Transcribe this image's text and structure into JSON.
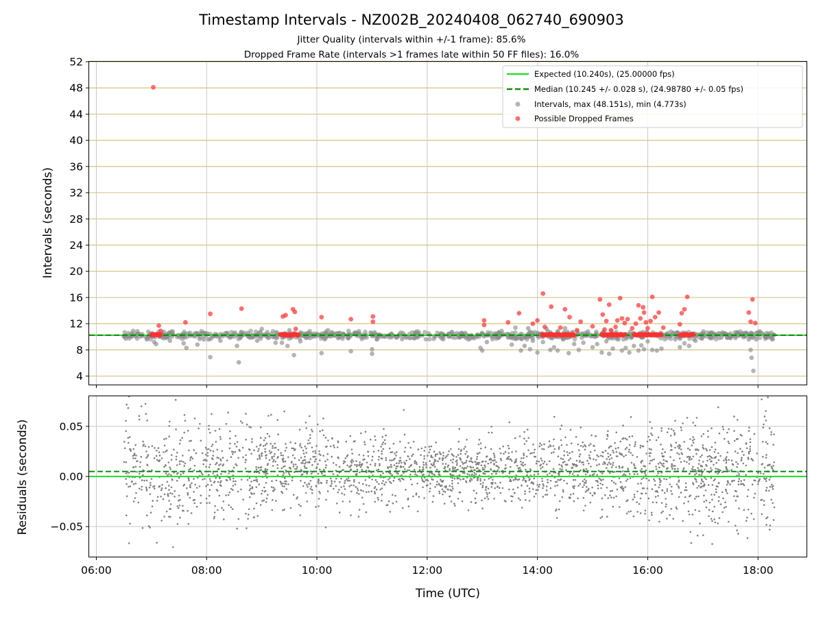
{
  "title": "Timestamp Intervals - NZ002B_20240408_062740_690903",
  "subtitle_1": "Jitter Quality (intervals within +/-1 frame): 85.6%",
  "subtitle_2": "Dropped Frame Rate (intervals >1 frames late within 50 FF files): 16.0%",
  "colors": {
    "expected": "#22e02a",
    "median": "#118a11",
    "intervals": "#8c8c8c",
    "dropped": "#ff3030",
    "hgrid": "#d4c48a",
    "vgrid": "#c8c8c8",
    "residuals": "#808080"
  },
  "chart_data": [
    {
      "type": "scatter",
      "ylabel": "Intervals (seconds)",
      "xlim_hours": [
        5.87,
        18.88
      ],
      "ylim": [
        2.7,
        52
      ],
      "yticks": [
        4,
        8,
        12,
        16,
        20,
        24,
        28,
        32,
        36,
        40,
        44,
        48,
        52
      ],
      "ytick_labels": [
        "4",
        "8",
        "12",
        "16",
        "20",
        "24",
        "28",
        "32",
        "36",
        "40",
        "44",
        "48",
        "52"
      ],
      "grid": "horizontal and vertical",
      "legend_position": "top-right",
      "legend": {
        "expected": "Expected (10.240s), (25.00000 fps)",
        "median": "Median (10.245 +/- 0.028 s), (24.98780 +/- 0.05 fps)",
        "intervals": "Intervals, max (48.151s), min (4.773s)",
        "dropped": "Possible Dropped Frames"
      },
      "expected_interval": 10.24,
      "median_interval": 10.245,
      "dense_interval_band": {
        "x_start": "06:30",
        "x_end": "18:18",
        "y_min": 9.6,
        "y_max": 10.9
      },
      "dropped_clusters": [
        {
          "x_start": "07:00",
          "x_end": "07:10",
          "y": 10.3
        },
        {
          "x_start": "09:20",
          "x_end": "09:40",
          "y": 10.3
        },
        {
          "x_start": "14:05",
          "x_end": "14:20",
          "y": 10.3
        },
        {
          "x_start": "14:20",
          "x_end": "14:40",
          "y": 10.3
        },
        {
          "x_start": "15:10",
          "x_end": "15:35",
          "y": 10.3
        },
        {
          "x_start": "15:45",
          "x_end": "16:15",
          "y": 10.3
        },
        {
          "x_start": "16:35",
          "x_end": "16:50",
          "y": 10.3
        }
      ],
      "intervals_points": [
        {
          "x": "06:32",
          "y": 9.7
        },
        {
          "x": "06:40",
          "y": 10.9
        },
        {
          "x": "06:55",
          "y": 9.6
        },
        {
          "x": "07:03",
          "y": 9.2
        },
        {
          "x": "07:05",
          "y": 8.9
        },
        {
          "x": "07:20",
          "y": 9.4
        },
        {
          "x": "07:35",
          "y": 9.0
        },
        {
          "x": "07:38",
          "y": 8.3
        },
        {
          "x": "07:50",
          "y": 8.8
        },
        {
          "x": "07:57",
          "y": 9.6
        },
        {
          "x": "08:02",
          "y": 9.6
        },
        {
          "x": "08:04",
          "y": 6.9
        },
        {
          "x": "08:15",
          "y": 9.4
        },
        {
          "x": "08:25",
          "y": 9.9
        },
        {
          "x": "08:33",
          "y": 8.6
        },
        {
          "x": "08:35",
          "y": 6.1
        },
        {
          "x": "08:45",
          "y": 10.6
        },
        {
          "x": "08:55",
          "y": 9.4
        },
        {
          "x": "09:00",
          "y": 11.2
        },
        {
          "x": "09:15",
          "y": 9.1
        },
        {
          "x": "09:22",
          "y": 9.1
        },
        {
          "x": "09:30",
          "y": 11.0
        },
        {
          "x": "09:28",
          "y": 8.6
        },
        {
          "x": "09:35",
          "y": 7.2
        },
        {
          "x": "09:42",
          "y": 9.3
        },
        {
          "x": "09:48",
          "y": 9.9
        },
        {
          "x": "10:05",
          "y": 7.5
        },
        {
          "x": "10:12",
          "y": 11.0
        },
        {
          "x": "10:37",
          "y": 7.8
        },
        {
          "x": "11:00",
          "y": 8.1
        },
        {
          "x": "11:00",
          "y": 7.4
        },
        {
          "x": "11:05",
          "y": 9.6
        },
        {
          "x": "12:45",
          "y": 9.6
        },
        {
          "x": "12:58",
          "y": 8.3
        },
        {
          "x": "13:00",
          "y": 7.9
        },
        {
          "x": "13:05",
          "y": 9.2
        },
        {
          "x": "13:18",
          "y": 10.7
        },
        {
          "x": "13:28",
          "y": 9.9
        },
        {
          "x": "13:32",
          "y": 8.8
        },
        {
          "x": "13:36",
          "y": 11.4
        },
        {
          "x": "13:42",
          "y": 7.9
        },
        {
          "x": "13:46",
          "y": 8.6
        },
        {
          "x": "13:50",
          "y": 11.3
        },
        {
          "x": "13:52",
          "y": 8.1
        },
        {
          "x": "13:55",
          "y": 9.4
        },
        {
          "x": "14:00",
          "y": 7.6
        },
        {
          "x": "14:06",
          "y": 9.2
        },
        {
          "x": "14:10",
          "y": 11.2
        },
        {
          "x": "14:14",
          "y": 8.0
        },
        {
          "x": "14:18",
          "y": 8.4
        },
        {
          "x": "14:22",
          "y": 7.9
        },
        {
          "x": "14:28",
          "y": 9.6
        },
        {
          "x": "14:30",
          "y": 11.3
        },
        {
          "x": "14:34",
          "y": 7.5
        },
        {
          "x": "14:40",
          "y": 8.9
        },
        {
          "x": "14:45",
          "y": 8.0
        },
        {
          "x": "14:50",
          "y": 9.1
        },
        {
          "x": "14:55",
          "y": 10.8
        },
        {
          "x": "15:00",
          "y": 8.4
        },
        {
          "x": "15:05",
          "y": 8.9
        },
        {
          "x": "15:10",
          "y": 7.6
        },
        {
          "x": "15:15",
          "y": 9.3
        },
        {
          "x": "15:18",
          "y": 7.4
        },
        {
          "x": "15:22",
          "y": 8.2
        },
        {
          "x": "15:28",
          "y": 9.6
        },
        {
          "x": "15:32",
          "y": 7.9
        },
        {
          "x": "15:36",
          "y": 8.3
        },
        {
          "x": "15:40",
          "y": 7.6
        },
        {
          "x": "15:45",
          "y": 8.6
        },
        {
          "x": "15:50",
          "y": 7.9
        },
        {
          "x": "15:53",
          "y": 8.7
        },
        {
          "x": "15:56",
          "y": 8.1
        },
        {
          "x": "16:00",
          "y": 9.3
        },
        {
          "x": "16:05",
          "y": 8.0
        },
        {
          "x": "16:10",
          "y": 7.9
        },
        {
          "x": "16:15",
          "y": 8.2
        },
        {
          "x": "16:30",
          "y": 9.6
        },
        {
          "x": "16:35",
          "y": 8.4
        },
        {
          "x": "16:40",
          "y": 9.0
        },
        {
          "x": "16:45",
          "y": 8.6
        },
        {
          "x": "16:52",
          "y": 9.4
        },
        {
          "x": "17:10",
          "y": 9.8
        },
        {
          "x": "17:30",
          "y": 9.8
        },
        {
          "x": "17:50",
          "y": 9.6
        },
        {
          "x": "17:52",
          "y": 8.0
        },
        {
          "x": "17:53",
          "y": 6.8
        },
        {
          "x": "17:55",
          "y": 4.8
        },
        {
          "x": "17:58",
          "y": 9.6
        },
        {
          "x": "18:02",
          "y": 10.8
        }
      ],
      "dropped_points": [
        {
          "x": "07:02",
          "y": 48.1
        },
        {
          "x": "07:08",
          "y": 11.7
        },
        {
          "x": "07:10",
          "y": 10.9
        },
        {
          "x": "07:37",
          "y": 12.2
        },
        {
          "x": "08:04",
          "y": 13.5
        },
        {
          "x": "08:38",
          "y": 14.3
        },
        {
          "x": "09:23",
          "y": 13.1
        },
        {
          "x": "09:26",
          "y": 13.3
        },
        {
          "x": "09:34",
          "y": 14.2
        },
        {
          "x": "09:36",
          "y": 13.8
        },
        {
          "x": "09:37",
          "y": 11.2
        },
        {
          "x": "10:05",
          "y": 13.0
        },
        {
          "x": "10:37",
          "y": 12.7
        },
        {
          "x": "11:01",
          "y": 13.1
        },
        {
          "x": "11:01",
          "y": 12.3
        },
        {
          "x": "13:02",
          "y": 12.5
        },
        {
          "x": "13:02",
          "y": 11.8
        },
        {
          "x": "13:28",
          "y": 12.2
        },
        {
          "x": "13:40",
          "y": 13.6
        },
        {
          "x": "13:55",
          "y": 12.0
        },
        {
          "x": "14:00",
          "y": 12.5
        },
        {
          "x": "14:06",
          "y": 16.6
        },
        {
          "x": "14:08",
          "y": 11.5
        },
        {
          "x": "14:15",
          "y": 14.6
        },
        {
          "x": "14:25",
          "y": 11.4
        },
        {
          "x": "14:30",
          "y": 14.2
        },
        {
          "x": "14:35",
          "y": 13.0
        },
        {
          "x": "14:43",
          "y": 11.0
        },
        {
          "x": "14:47",
          "y": 12.3
        },
        {
          "x": "15:00",
          "y": 11.6
        },
        {
          "x": "15:08",
          "y": 15.7
        },
        {
          "x": "15:11",
          "y": 13.4
        },
        {
          "x": "15:13",
          "y": 11.1
        },
        {
          "x": "15:15",
          "y": 12.4
        },
        {
          "x": "15:18",
          "y": 14.9
        },
        {
          "x": "15:20",
          "y": 11.0
        },
        {
          "x": "15:25",
          "y": 11.5
        },
        {
          "x": "15:27",
          "y": 12.5
        },
        {
          "x": "15:30",
          "y": 15.9
        },
        {
          "x": "15:32",
          "y": 12.8
        },
        {
          "x": "15:35",
          "y": 12.1
        },
        {
          "x": "15:38",
          "y": 12.7
        },
        {
          "x": "15:43",
          "y": 11.3
        },
        {
          "x": "15:47",
          "y": 12.0
        },
        {
          "x": "15:50",
          "y": 14.8
        },
        {
          "x": "15:52",
          "y": 12.8
        },
        {
          "x": "15:55",
          "y": 14.5
        },
        {
          "x": "15:56",
          "y": 13.7
        },
        {
          "x": "15:58",
          "y": 12.2
        },
        {
          "x": "16:00",
          "y": 11.3
        },
        {
          "x": "16:03",
          "y": 12.4
        },
        {
          "x": "16:05",
          "y": 16.1
        },
        {
          "x": "16:08",
          "y": 13.0
        },
        {
          "x": "16:12",
          "y": 13.7
        },
        {
          "x": "16:17",
          "y": 11.4
        },
        {
          "x": "16:35",
          "y": 11.9
        },
        {
          "x": "16:37",
          "y": 13.6
        },
        {
          "x": "16:40",
          "y": 14.2
        },
        {
          "x": "16:43",
          "y": 16.1
        },
        {
          "x": "17:50",
          "y": 13.7
        },
        {
          "x": "17:52",
          "y": 12.3
        },
        {
          "x": "17:54",
          "y": 15.7
        },
        {
          "x": "17:57",
          "y": 12.1
        }
      ]
    },
    {
      "type": "scatter",
      "xlabel": "Time (UTC)",
      "ylabel": "Residuals (seconds)",
      "xlim_hours": [
        5.87,
        18.88
      ],
      "ylim": [
        -0.08,
        0.08
      ],
      "yticks": [
        -0.05,
        0,
        0.05
      ],
      "ytick_labels": [
        "−0.05",
        "0.00",
        "0.05"
      ],
      "xticks_hours": [
        6,
        8,
        10,
        12,
        14,
        16,
        18
      ],
      "xtick_labels": [
        "06:00",
        "08:00",
        "10:00",
        "12:00",
        "14:00",
        "16:00",
        "18:00"
      ],
      "grid": "horizontal and vertical",
      "expected_line": 0.0,
      "median_line": 0.005,
      "residual_band": {
        "x_start": "06:30",
        "x_end": "18:18",
        "y_min": -0.08,
        "y_max": 0.08,
        "point_count": 2500
      }
    }
  ]
}
